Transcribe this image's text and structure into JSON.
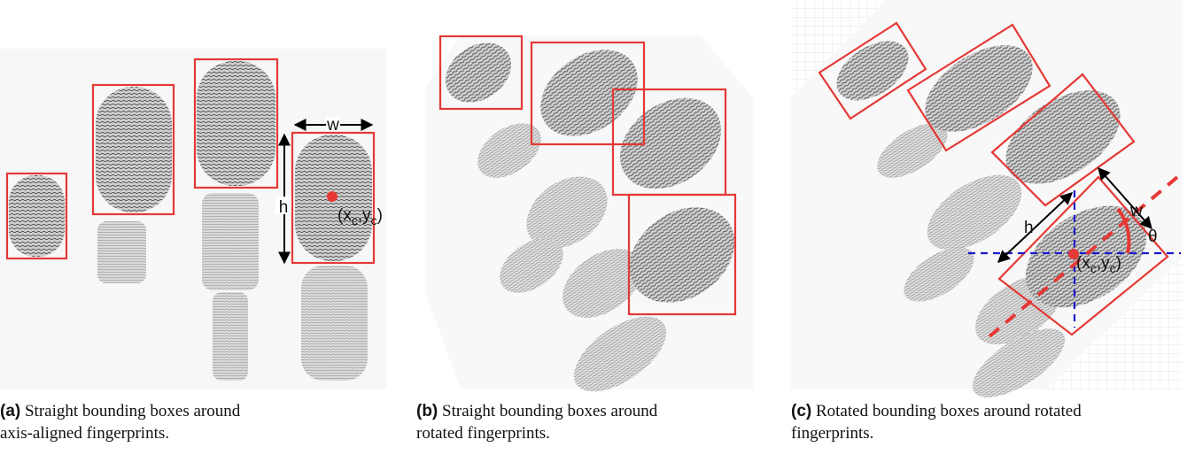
{
  "panels": [
    {
      "label": "(a)",
      "caption_lines": [
        "Straight bounding boxes around",
        "axis-aligned fingerprints."
      ]
    },
    {
      "label": "(b)",
      "caption_lines": [
        "Straight bounding boxes around",
        "rotated fingerprints."
      ]
    },
    {
      "label": "(c)",
      "caption_lines": [
        "Rotated bounding boxes around rotated",
        "fingerprints."
      ]
    }
  ],
  "annotations": {
    "w": "w",
    "h": "h",
    "theta": "θ",
    "center": [
      "(x",
      "c",
      ",y",
      "c",
      ")"
    ]
  }
}
